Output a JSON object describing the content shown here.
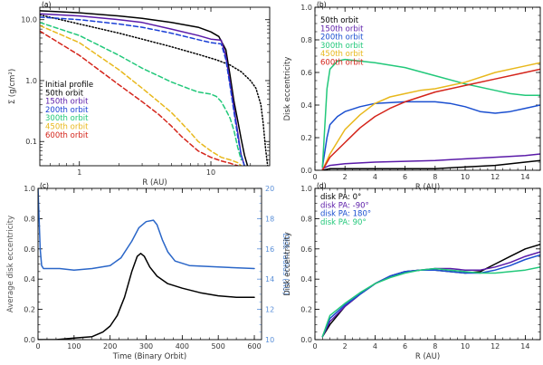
{
  "chart_data": [
    {
      "panel": "(a)",
      "type": "line",
      "xscale": "log",
      "yscale": "log",
      "xlim": [
        0.5,
        28
      ],
      "ylim": [
        0.04,
        16
      ],
      "xlabel": "R (AU)",
      "ylabel": "Σ (g/cm²)",
      "xticks": [
        {
          "v": 1,
          "label": "1"
        },
        {
          "v": 10,
          "label": "10"
        }
      ],
      "yticks": [
        {
          "v": 0.1,
          "label": "0.1"
        },
        {
          "v": 1,
          "label": "1.0"
        },
        {
          "v": 10,
          "label": "10.0"
        }
      ],
      "legend": [
        "Initial profile",
        "50th orbit",
        "150th orbit",
        "200th orbit",
        "300th orbit",
        "450th orbit",
        "600th orbit"
      ],
      "series": [
        {
          "name": "Initial profile",
          "color": "#000000",
          "dash": "dot",
          "x": [
            0.5,
            1,
            2,
            3,
            5,
            8,
            11,
            14,
            17,
            20,
            22,
            24,
            25,
            26,
            27
          ],
          "y": [
            12,
            8.5,
            6,
            4.8,
            3.6,
            2.7,
            2.2,
            1.8,
            1.4,
            1.0,
            0.75,
            0.4,
            0.2,
            0.08,
            0.04
          ]
        },
        {
          "name": "50th orbit",
          "color": "#000000",
          "dash": "solid",
          "x": [
            0.5,
            1,
            2,
            3,
            5,
            8,
            10,
            11.5,
            13,
            14,
            15,
            16,
            17,
            18,
            19
          ],
          "y": [
            14,
            13,
            11.5,
            10.5,
            9,
            7.5,
            6.3,
            5.3,
            3.2,
            1.2,
            0.45,
            0.22,
            0.11,
            0.06,
            0.04
          ]
        },
        {
          "name": "150th orbit",
          "color": "#5a1aa8",
          "dash": "solid",
          "x": [
            0.5,
            1,
            2,
            3,
            5,
            8,
            10,
            12,
            13,
            14,
            15,
            16,
            17,
            18
          ],
          "y": [
            12.5,
            11.5,
            10,
            9,
            7,
            5.5,
            4.8,
            4.6,
            2.5,
            0.9,
            0.35,
            0.14,
            0.06,
            0.04
          ]
        },
        {
          "name": "200th orbit",
          "color": "#1a3fd6",
          "dash": "dash",
          "x": [
            0.5,
            1,
            2,
            3,
            5,
            8,
            10,
            12,
            13,
            14,
            15,
            16,
            17,
            18
          ],
          "y": [
            11,
            10,
            8.5,
            7.5,
            6,
            4.7,
            4.2,
            4.0,
            2.2,
            0.8,
            0.3,
            0.12,
            0.06,
            0.04
          ]
        },
        {
          "name": "300th orbit",
          "color": "#22c87a",
          "dash": "dash",
          "x": [
            0.5,
            1,
            2,
            3,
            5,
            7,
            8,
            10,
            11,
            12,
            13,
            14,
            15,
            16,
            17
          ],
          "y": [
            9,
            5.5,
            2.6,
            1.6,
            0.95,
            0.72,
            0.65,
            0.6,
            0.55,
            0.45,
            0.33,
            0.24,
            0.15,
            0.08,
            0.05
          ]
        },
        {
          "name": "450th orbit",
          "color": "#e8b81c",
          "dash": "dash",
          "x": [
            0.5,
            1,
            2,
            3,
            4,
            5,
            6,
            7,
            8,
            10,
            12,
            14,
            16,
            17
          ],
          "y": [
            8,
            4.2,
            1.5,
            0.75,
            0.45,
            0.3,
            0.2,
            0.14,
            0.1,
            0.07,
            0.055,
            0.05,
            0.045,
            0.04
          ]
        },
        {
          "name": "600th orbit",
          "color": "#d4241a",
          "dash": "dash",
          "x": [
            0.5,
            1,
            2,
            3,
            4,
            5,
            6,
            7,
            8,
            10,
            12,
            14,
            16
          ],
          "y": [
            6.5,
            2.6,
            0.85,
            0.45,
            0.28,
            0.18,
            0.12,
            0.09,
            0.07,
            0.055,
            0.048,
            0.044,
            0.04
          ]
        }
      ]
    },
    {
      "panel": "(b)",
      "type": "line",
      "xlim": [
        0,
        15
      ],
      "ylim": [
        0,
        1.0
      ],
      "xlabel": "R (AU)",
      "ylabel": "Disk eccentricity",
      "xticks": [
        {
          "v": 0,
          "label": "0"
        },
        {
          "v": 2,
          "label": "2"
        },
        {
          "v": 4,
          "label": "4"
        },
        {
          "v": 6,
          "label": "6"
        },
        {
          "v": 8,
          "label": "8"
        },
        {
          "v": 10,
          "label": "10"
        },
        {
          "v": 12,
          "label": "12"
        },
        {
          "v": 14,
          "label": "14"
        }
      ],
      "yticks": [
        {
          "v": 0,
          "label": "0.0"
        },
        {
          "v": 0.2,
          "label": "0.2"
        },
        {
          "v": 0.4,
          "label": "0.4"
        },
        {
          "v": 0.6,
          "label": "0.6"
        },
        {
          "v": 0.8,
          "label": "0.8"
        },
        {
          "v": 1.0,
          "label": "1.0"
        }
      ],
      "legend": [
        "50th orbit",
        "150th orbit",
        "200th orbit",
        "300th orbit",
        "450th orbit",
        "600th orbit"
      ],
      "series": [
        {
          "name": "50th orbit",
          "color": "#000000",
          "x": [
            0.5,
            1,
            2,
            4,
            6,
            8,
            10,
            12,
            14,
            15
          ],
          "y": [
            0.0,
            0.01,
            0.01,
            0.01,
            0.01,
            0.01,
            0.02,
            0.03,
            0.05,
            0.06
          ]
        },
        {
          "name": "150th orbit",
          "color": "#5a1aa8",
          "x": [
            0.5,
            1,
            2,
            4,
            6,
            8,
            10,
            12,
            14,
            15
          ],
          "y": [
            0.01,
            0.03,
            0.04,
            0.05,
            0.055,
            0.06,
            0.07,
            0.08,
            0.09,
            0.1
          ]
        },
        {
          "name": "200th orbit",
          "color": "#1a4fd0",
          "x": [
            0.5,
            0.8,
            1,
            1.5,
            2,
            3,
            4,
            6,
            8,
            9,
            10,
            11,
            12,
            13,
            14,
            15
          ],
          "y": [
            0.02,
            0.2,
            0.28,
            0.33,
            0.36,
            0.39,
            0.41,
            0.42,
            0.42,
            0.41,
            0.39,
            0.36,
            0.35,
            0.36,
            0.38,
            0.4
          ]
        },
        {
          "name": "300th orbit",
          "color": "#22c87a",
          "x": [
            0.5,
            0.8,
            1,
            1.5,
            2,
            4,
            6,
            8,
            10,
            12,
            13,
            14,
            15
          ],
          "y": [
            0.02,
            0.5,
            0.62,
            0.67,
            0.68,
            0.66,
            0.63,
            0.58,
            0.53,
            0.49,
            0.47,
            0.46,
            0.46
          ]
        },
        {
          "name": "450th orbit",
          "color": "#e8b81c",
          "x": [
            0.5,
            1,
            2,
            3,
            4,
            5,
            6,
            7,
            8,
            10,
            12,
            14,
            15
          ],
          "y": [
            0.0,
            0.1,
            0.25,
            0.34,
            0.41,
            0.45,
            0.47,
            0.49,
            0.5,
            0.54,
            0.6,
            0.64,
            0.66
          ]
        },
        {
          "name": "600th orbit",
          "color": "#d4241a",
          "x": [
            0.5,
            1,
            2,
            3,
            4,
            5,
            6,
            7,
            8,
            10,
            12,
            14,
            15
          ],
          "y": [
            0.0,
            0.08,
            0.17,
            0.26,
            0.33,
            0.38,
            0.42,
            0.45,
            0.48,
            0.52,
            0.56,
            0.6,
            0.62
          ]
        }
      ]
    },
    {
      "panel": "(c)",
      "type": "line",
      "xlim": [
        0,
        620
      ],
      "ylim": [
        0,
        1.0
      ],
      "y2lim": [
        10,
        20
      ],
      "xlabel": "Time (Binary Orbit)",
      "ylabel": "Average disk eccentricity",
      "y2label": "Disk radius (AU)",
      "xticks": [
        {
          "v": 0,
          "label": "0"
        },
        {
          "v": 100,
          "label": "100"
        },
        {
          "v": 200,
          "label": "200"
        },
        {
          "v": 300,
          "label": "300"
        },
        {
          "v": 400,
          "label": "400"
        },
        {
          "v": 500,
          "label": "500"
        },
        {
          "v": 600,
          "label": "600"
        }
      ],
      "yticks": [
        {
          "v": 0,
          "label": "0.0"
        },
        {
          "v": 0.2,
          "label": "0.2"
        },
        {
          "v": 0.4,
          "label": "0.4"
        },
        {
          "v": 0.6,
          "label": "0.6"
        },
        {
          "v": 0.8,
          "label": "0.8"
        },
        {
          "v": 1.0,
          "label": "1.0"
        }
      ],
      "y2ticks": [
        {
          "v": 10,
          "label": "10"
        },
        {
          "v": 12,
          "label": "12"
        },
        {
          "v": 14,
          "label": "14"
        },
        {
          "v": 16,
          "label": "16"
        },
        {
          "v": 18,
          "label": "18"
        },
        {
          "v": 20,
          "label": "20"
        }
      ],
      "series": [
        {
          "name": "Average disk eccentricity",
          "color": "#000000",
          "axis": "left",
          "x": [
            0,
            50,
            100,
            150,
            180,
            200,
            220,
            240,
            260,
            275,
            285,
            295,
            310,
            330,
            360,
            400,
            450,
            500,
            550,
            600
          ],
          "y": [
            0.0,
            0.0,
            0.01,
            0.02,
            0.05,
            0.09,
            0.16,
            0.28,
            0.45,
            0.55,
            0.57,
            0.55,
            0.48,
            0.42,
            0.37,
            0.34,
            0.31,
            0.29,
            0.28,
            0.28
          ]
        },
        {
          "name": "Disk radius",
          "color": "#2a66c8",
          "axis": "right",
          "x": [
            0,
            3,
            6,
            10,
            15,
            20,
            30,
            60,
            100,
            150,
            200,
            230,
            260,
            280,
            300,
            320,
            330,
            345,
            360,
            380,
            420,
            500,
            600
          ],
          "y": [
            20,
            18,
            16,
            14.9,
            14.7,
            14.7,
            14.7,
            14.7,
            14.6,
            14.7,
            14.9,
            15.4,
            16.5,
            17.4,
            17.8,
            17.9,
            17.6,
            16.6,
            15.8,
            15.2,
            14.9,
            14.8,
            14.7
          ]
        }
      ]
    },
    {
      "panel": "(d)",
      "type": "line",
      "xlim": [
        0,
        15
      ],
      "ylim": [
        0,
        1.0
      ],
      "xlabel": "R (AU)",
      "ylabel": "Disk eccentricity",
      "xticks": [
        {
          "v": 0,
          "label": "0"
        },
        {
          "v": 2,
          "label": "2"
        },
        {
          "v": 4,
          "label": "4"
        },
        {
          "v": 6,
          "label": "6"
        },
        {
          "v": 8,
          "label": "8"
        },
        {
          "v": 10,
          "label": "10"
        },
        {
          "v": 12,
          "label": "12"
        },
        {
          "v": 14,
          "label": "14"
        }
      ],
      "yticks": [
        {
          "v": 0,
          "label": "0.0"
        },
        {
          "v": 0.2,
          "label": "0.2"
        },
        {
          "v": 0.4,
          "label": "0.4"
        },
        {
          "v": 0.6,
          "label": "0.6"
        },
        {
          "v": 0.8,
          "label": "0.8"
        },
        {
          "v": 1.0,
          "label": "1.0"
        }
      ],
      "legend": [
        "disk PA: 0°",
        "disk PA: -90°",
        "disk PA: 180°",
        "disk PA: 90°"
      ],
      "series": [
        {
          "name": "disk PA: 0°",
          "color": "#000000",
          "x": [
            0.5,
            1,
            2,
            3,
            4,
            5,
            6,
            7,
            8,
            9,
            10,
            11,
            12,
            13,
            14,
            15
          ],
          "y": [
            0.02,
            0.1,
            0.22,
            0.3,
            0.37,
            0.42,
            0.45,
            0.46,
            0.46,
            0.45,
            0.44,
            0.45,
            0.5,
            0.55,
            0.6,
            0.63
          ]
        },
        {
          "name": "disk PA: -90°",
          "color": "#5a1aa8",
          "x": [
            0.5,
            1,
            2,
            3,
            4,
            5,
            6,
            7,
            8,
            9,
            10,
            11,
            12,
            13,
            14,
            15
          ],
          "y": [
            0.02,
            0.12,
            0.22,
            0.3,
            0.37,
            0.42,
            0.45,
            0.46,
            0.47,
            0.47,
            0.46,
            0.46,
            0.48,
            0.51,
            0.55,
            0.58
          ]
        },
        {
          "name": "disk PA: 180°",
          "color": "#1a4fd0",
          "x": [
            0.5,
            1,
            2,
            3,
            4,
            5,
            6,
            7,
            8,
            9,
            10,
            11,
            12,
            13,
            14,
            15
          ],
          "y": [
            0.02,
            0.14,
            0.23,
            0.3,
            0.37,
            0.42,
            0.45,
            0.46,
            0.46,
            0.45,
            0.44,
            0.44,
            0.46,
            0.49,
            0.53,
            0.56
          ]
        },
        {
          "name": "disk PA: 90°",
          "color": "#22c87a",
          "x": [
            0.5,
            1,
            2,
            3,
            4,
            5,
            6,
            7,
            8,
            9,
            10,
            11,
            12,
            13,
            14,
            15
          ],
          "y": [
            0.02,
            0.16,
            0.24,
            0.31,
            0.37,
            0.41,
            0.44,
            0.46,
            0.47,
            0.46,
            0.45,
            0.44,
            0.44,
            0.45,
            0.46,
            0.48
          ]
        }
      ]
    }
  ]
}
